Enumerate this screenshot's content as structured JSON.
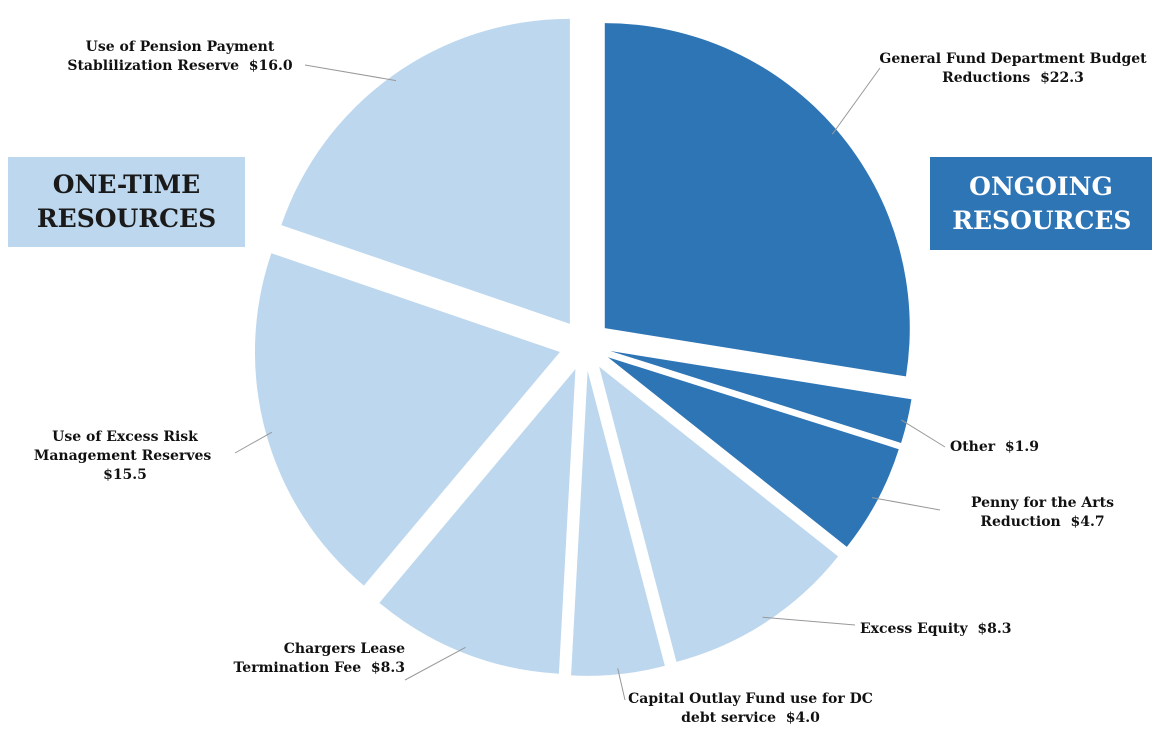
{
  "chart_data": {
    "type": "pie",
    "categories": [
      "General Fund Department Budget Reductions",
      "Other",
      "Penny for the Arts Reduction",
      "Excess Equity",
      "Capital Outlay Fund use for DC debt service",
      "Chargers Lease Termination Fee",
      "Use of Excess Risk Management Reserves",
      "Use of Pension Payment Stablilization Reserve"
    ],
    "values": [
      22.3,
      1.9,
      4.7,
      8.3,
      4.0,
      8.3,
      15.5,
      16.0
    ],
    "value_labels": [
      "$22.3",
      "$1.9",
      "$4.7",
      "$8.3",
      "$4.0",
      "$8.3",
      "$15.5",
      "$16.0"
    ],
    "colors": [
      "#2e75b6",
      "#2e75b6",
      "#2e75b6",
      "#bdd7ee",
      "#bdd7ee",
      "#bdd7ee",
      "#bdd7ee",
      "#bdd7ee"
    ],
    "annotations": [
      {
        "text": "ONE-TIME RESOURCES",
        "color": "#bdd7ee"
      },
      {
        "text": "ONGOING RESOURCES",
        "color": "#2e75b6"
      }
    ]
  }
}
